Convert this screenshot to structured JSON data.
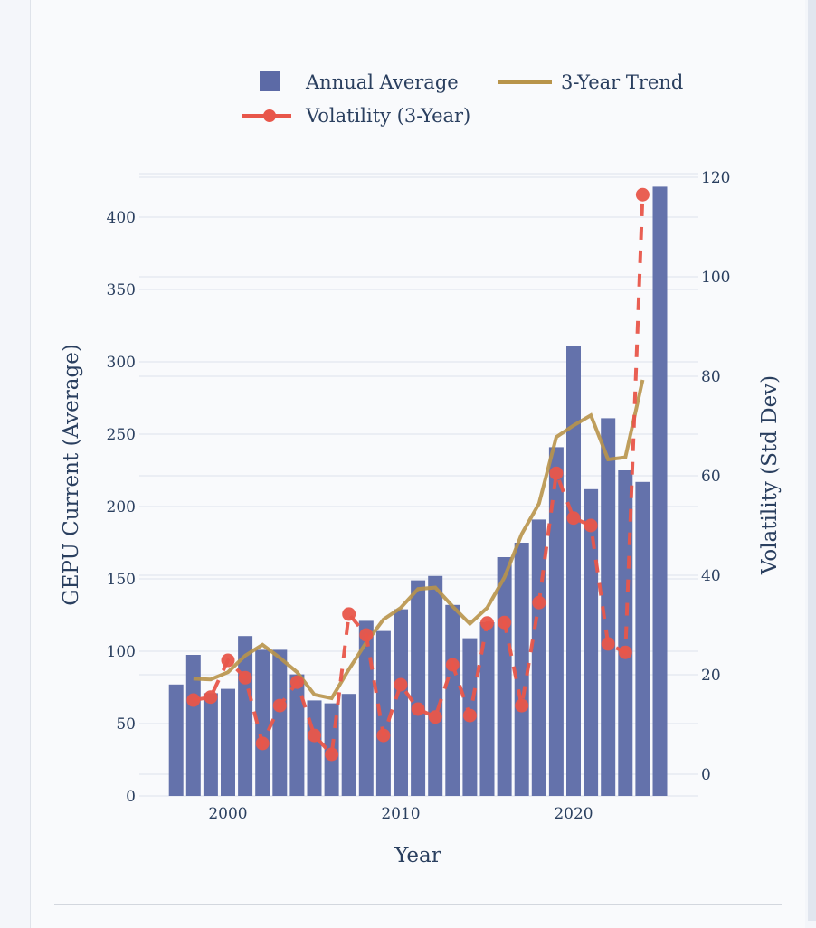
{
  "chart_data": {
    "type": "bar",
    "title": "",
    "xlabel": "Year",
    "ylabel": "GEPU Current (Average)",
    "y2label": "Volatility (Std Dev)",
    "xlim": [
      1996.4,
      2025.6
    ],
    "ylim": [
      0,
      420
    ],
    "y2lim": [
      -5,
      120
    ],
    "grid": true,
    "legend_position": "top",
    "x_ticks": [
      2000,
      2010,
      2020
    ],
    "y_ticks": [
      0,
      50,
      100,
      150,
      200,
      250,
      300,
      350,
      400
    ],
    "y2_ticks": [
      0,
      20,
      40,
      60,
      80,
      100,
      120
    ],
    "categories": [
      1997,
      1998,
      1999,
      2000,
      2001,
      2002,
      2003,
      2004,
      2005,
      2006,
      2007,
      2008,
      2009,
      2010,
      2011,
      2012,
      2013,
      2014,
      2015,
      2016,
      2017,
      2018,
      2019,
      2020,
      2021,
      2022,
      2023,
      2024,
      2025
    ],
    "series": [
      {
        "name": "Annual Average",
        "type": "bar",
        "axis": "left",
        "color": "#5c6aa6",
        "x": [
          1997,
          1998,
          1999,
          2000,
          2001,
          2002,
          2003,
          2004,
          2005,
          2006,
          2007,
          2008,
          2009,
          2010,
          2011,
          2012,
          2013,
          2014,
          2015,
          2016,
          2017,
          2018,
          2019,
          2020,
          2021,
          2022,
          2023,
          2024,
          2025
        ],
        "values": [
          77,
          97.5,
          71,
          74,
          110.5,
          101,
          101,
          84,
          66,
          64,
          70.5,
          121,
          114,
          129,
          149,
          152,
          132,
          109,
          120,
          165,
          175,
          191,
          241,
          311,
          212,
          261,
          225,
          217,
          421
        ]
      },
      {
        "name": "3-Year Trend",
        "type": "line",
        "axis": "left",
        "color": "#b8944a",
        "x": [
          1998,
          1999,
          2000,
          2001,
          2002,
          2003,
          2004,
          2005,
          2006,
          2007,
          2008,
          2009,
          2010,
          2011,
          2012,
          2013,
          2014,
          2015,
          2016,
          2017,
          2018,
          2019,
          2020,
          2021,
          2022,
          2023,
          2024
        ],
        "values": [
          81,
          80.5,
          85.5,
          97,
          104.5,
          95.5,
          85.5,
          70,
          67.5,
          87.5,
          106,
          122,
          130,
          143,
          144,
          131,
          119,
          130,
          151,
          181,
          202,
          248,
          256,
          263,
          232.5,
          234,
          287.5
        ]
      },
      {
        "name": "Volatility (3-Year)",
        "type": "line",
        "axis": "right",
        "style": "dashed",
        "markers": true,
        "color": "#e8564a",
        "x": [
          1998,
          1999,
          2000,
          2001,
          2002,
          2003,
          2004,
          2005,
          2006,
          2007,
          2008,
          2009,
          2010,
          2011,
          2012,
          2013,
          2014,
          2015,
          2016,
          2017,
          2018,
          2019,
          2020,
          2021,
          2022,
          2023,
          2024
        ],
        "values": [
          14.9,
          15.5,
          22.9,
          19.4,
          6.2,
          13.8,
          18.5,
          7.8,
          4.0,
          32.2,
          28,
          7.8,
          18,
          13.1,
          11.5,
          22,
          11.8,
          30.4,
          30.5,
          13.8,
          34.5,
          60.5,
          51.5,
          50,
          26.2,
          24.5,
          116.5
        ]
      }
    ]
  }
}
